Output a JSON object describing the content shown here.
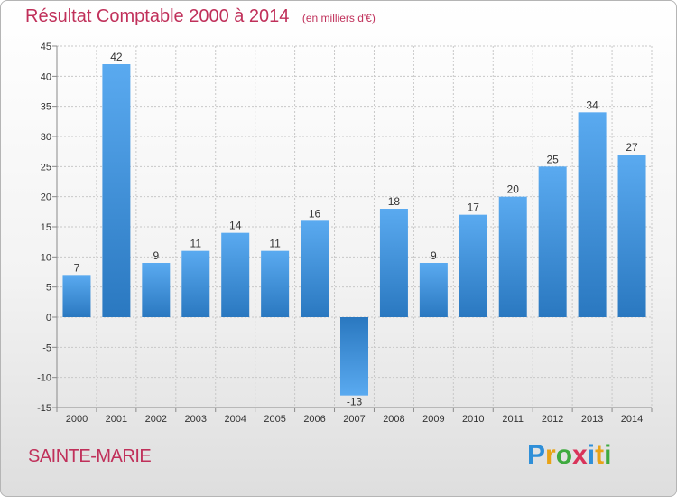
{
  "chart_data": {
    "type": "bar",
    "title": "Résultat Comptable 2000 à 2014",
    "subtitle": "(en milliers d'€)",
    "categories": [
      "2000",
      "2001",
      "2002",
      "2003",
      "2004",
      "2005",
      "2006",
      "2007",
      "2008",
      "2009",
      "2010",
      "2011",
      "2012",
      "2013",
      "2014"
    ],
    "values": [
      7,
      42,
      9,
      11,
      14,
      11,
      16,
      -13,
      18,
      9,
      17,
      20,
      25,
      34,
      27
    ],
    "ylim": [
      -15,
      45
    ],
    "yticks": [
      -15,
      -10,
      -5,
      0,
      5,
      10,
      15,
      20,
      25,
      30,
      35,
      40,
      45
    ],
    "xlabel": "",
    "ylabel": "",
    "grid": true,
    "bar_color": "#3a8fd8"
  },
  "footer": {
    "place": "SAINTE-MARIE",
    "brand_letters": [
      {
        "char": "P",
        "color": "#2f8fd8"
      },
      {
        "char": "r",
        "color": "#e8a317"
      },
      {
        "char": "o",
        "color": "#3faa3f"
      },
      {
        "char": "x",
        "color": "#d9345a"
      },
      {
        "char": "i",
        "color": "#2f8fd8"
      },
      {
        "char": "t",
        "color": "#e8a317"
      },
      {
        "char": "i",
        "color": "#3faa3f"
      }
    ]
  },
  "colors": {
    "title": "#c0305a",
    "grid": "#c8c8c8",
    "axis": "#8a8a8a"
  }
}
